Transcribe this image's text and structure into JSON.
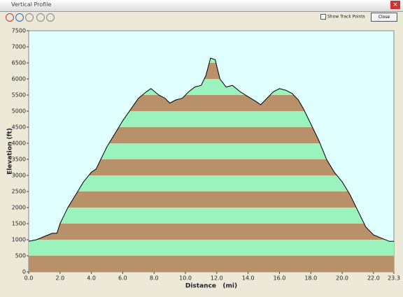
{
  "window": {
    "title": "Vertical Profile",
    "show_track_points": "Show Track Points",
    "close": "Close"
  },
  "chart_data": {
    "type": "area",
    "x_label": "Distance   (mi)",
    "y_label": "Elevation (ft)",
    "x": [
      0.0,
      0.5,
      1.0,
      1.5,
      1.8,
      2.0,
      2.3,
      2.5,
      3.0,
      3.5,
      4.0,
      4.3,
      4.7,
      5.0,
      5.5,
      6.0,
      6.5,
      7.0,
      7.5,
      7.8,
      8.3,
      8.7,
      9.0,
      9.4,
      9.8,
      10.2,
      10.6,
      11.0,
      11.3,
      11.6,
      11.9,
      12.2,
      12.6,
      13.0,
      13.5,
      14.0,
      14.5,
      14.8,
      15.2,
      15.6,
      16.0,
      16.4,
      16.8,
      17.2,
      17.5,
      18.0,
      18.5,
      19.0,
      19.5,
      20.0,
      20.5,
      21.0,
      21.5,
      22.0,
      22.5,
      23.0,
      23.3
    ],
    "values": [
      950,
      1000,
      1100,
      1200,
      1200,
      1500,
      1800,
      2000,
      2400,
      2800,
      3100,
      3200,
      3600,
      3900,
      4300,
      4700,
      5050,
      5400,
      5600,
      5700,
      5500,
      5400,
      5250,
      5350,
      5400,
      5600,
      5750,
      5800,
      6100,
      6650,
      6600,
      6000,
      5750,
      5800,
      5600,
      5450,
      5300,
      5200,
      5400,
      5600,
      5700,
      5650,
      5550,
      5350,
      5100,
      4600,
      4100,
      3500,
      3100,
      2800,
      2400,
      1900,
      1400,
      1150,
      1050,
      950,
      950
    ],
    "xlim": [
      0,
      23.3
    ],
    "ylim": [
      0,
      7500
    ],
    "xticks": [
      {
        "value": 0,
        "label": "0.0"
      },
      {
        "value": 2,
        "label": "2.0"
      },
      {
        "value": 4,
        "label": "4.0"
      },
      {
        "value": 6,
        "label": "6.0"
      },
      {
        "value": 8,
        "label": "8.0"
      },
      {
        "value": 10,
        "label": "10.0"
      },
      {
        "value": 12,
        "label": "12.0"
      },
      {
        "value": 14,
        "label": "14.0"
      },
      {
        "value": 16,
        "label": "16.0"
      },
      {
        "value": 18,
        "label": "18.0"
      },
      {
        "value": 20,
        "label": "20.0"
      },
      {
        "value": 22,
        "label": "22.0"
      },
      {
        "value": 23.3,
        "label": "23.3"
      }
    ],
    "yticks": [
      0,
      500,
      1000,
      1500,
      2000,
      2500,
      3000,
      3500,
      4000,
      4500,
      5000,
      5500,
      6000,
      6500,
      7000,
      7500
    ],
    "band_colors": [
      "#b8906a",
      "#9af2bc"
    ],
    "background": "#e0ffff"
  }
}
